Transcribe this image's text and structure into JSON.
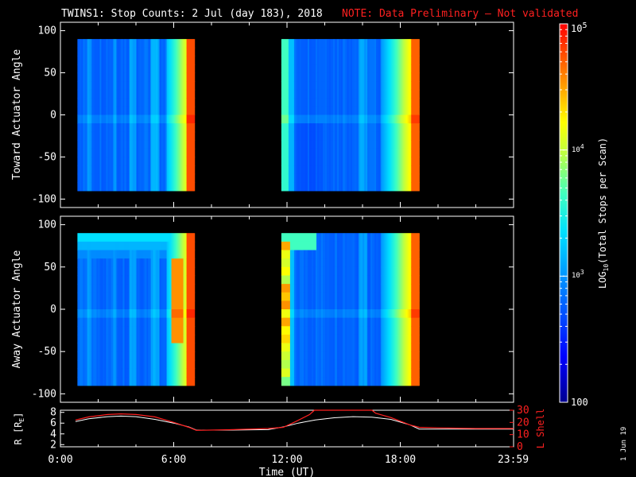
{
  "header": {
    "title": "TWINS1: Stop Counts:  2 Jul (day 183), 2018",
    "note": "NOTE: Data Preliminary – Not validated"
  },
  "stamp": "1 Jun 19",
  "chart_data": [
    {
      "type": "heatmap",
      "ylabel": "Toward Actuator Angle",
      "ylim": [
        -110,
        110
      ],
      "yticks": [
        100,
        50,
        0,
        -50,
        -100
      ],
      "xlim": [
        0,
        24
      ],
      "data_y_range": [
        -90,
        90
      ],
      "segments": [
        {
          "x_start": 0.9,
          "x_end": 7.1,
          "profile": "toward1"
        },
        {
          "x_start": 11.7,
          "x_end": 19.0,
          "profile": "toward2"
        }
      ]
    },
    {
      "type": "heatmap",
      "ylabel": "Away Actuator Angle",
      "ylim": [
        -110,
        110
      ],
      "yticks": [
        100,
        50,
        0,
        -50,
        -100
      ],
      "xlim": [
        0,
        24
      ],
      "data_y_range": [
        -90,
        90
      ],
      "segments": [
        {
          "x_start": 0.9,
          "x_end": 7.1,
          "profile": "away1"
        },
        {
          "x_start": 11.7,
          "x_end": 19.0,
          "profile": "away2"
        }
      ]
    },
    {
      "type": "line",
      "ylabel": "R [R",
      "ylabel_sub": "E",
      "ylabel_end": "]",
      "ylim": [
        1.6,
        8.4
      ],
      "yticks": [
        2,
        4,
        6,
        8
      ],
      "y2label": "L Shell",
      "y2lim": [
        0,
        30
      ],
      "y2ticks": [
        0,
        10,
        20,
        30
      ],
      "xlabel": "Time (UT)",
      "xtick_labels": [
        {
          "x": 0.0,
          "label": "0:00"
        },
        {
          "x": 6.0,
          "label": "6:00"
        },
        {
          "x": 12.0,
          "label": "12:00"
        },
        {
          "x": 18.0,
          "label": "18:00"
        },
        {
          "x": 23.98,
          "label": "23:59"
        }
      ],
      "series": [
        {
          "color": "#ffffff",
          "x": [
            0.8,
            1.5,
            2.5,
            3.2,
            4.0,
            5.0,
            6.0,
            6.8,
            7.2,
            9.0,
            11.0,
            11.8,
            12.6,
            13.5,
            14.5,
            15.5,
            16.5,
            17.5,
            18.5,
            19.0,
            20.0,
            22.0,
            24.0
          ],
          "y": [
            6.3,
            6.8,
            7.2,
            7.3,
            7.2,
            6.7,
            6.0,
            5.3,
            4.7,
            4.7,
            4.8,
            5.3,
            6.0,
            6.6,
            7.0,
            7.2,
            7.1,
            6.7,
            5.7,
            4.9,
            4.9,
            4.9,
            4.9
          ]
        },
        {
          "color": "#ff2020",
          "x": [
            0.8,
            1.5,
            2.5,
            3.2,
            4.0,
            5.0,
            6.0,
            6.8,
            7.2,
            9.0,
            11.0,
            11.8,
            12.5,
            13.2,
            13.45,
            16.5,
            16.7,
            17.5,
            18.5,
            19.0,
            20.0,
            22.0,
            24.0
          ],
          "y2": [
            22,
            24.5,
            26.5,
            27,
            26.5,
            24.5,
            20,
            16,
            13.5,
            14,
            15,
            16,
            21,
            26.5,
            30,
            30,
            27.5,
            24,
            18,
            16,
            15.5,
            15,
            15
          ]
        }
      ]
    }
  ],
  "colorbar": {
    "scale": "log",
    "range": [
      100,
      100000
    ],
    "tick_100": "100",
    "tick_1000": "10",
    "tick_1000_exp": "3",
    "tick_10000": "10",
    "tick_10000_exp": "4",
    "tick_100000": "10",
    "tick_100000_exp": "5",
    "label_pre": "LOG",
    "label_sub": "10",
    "label_post": "(Total Stops per Scan)"
  }
}
